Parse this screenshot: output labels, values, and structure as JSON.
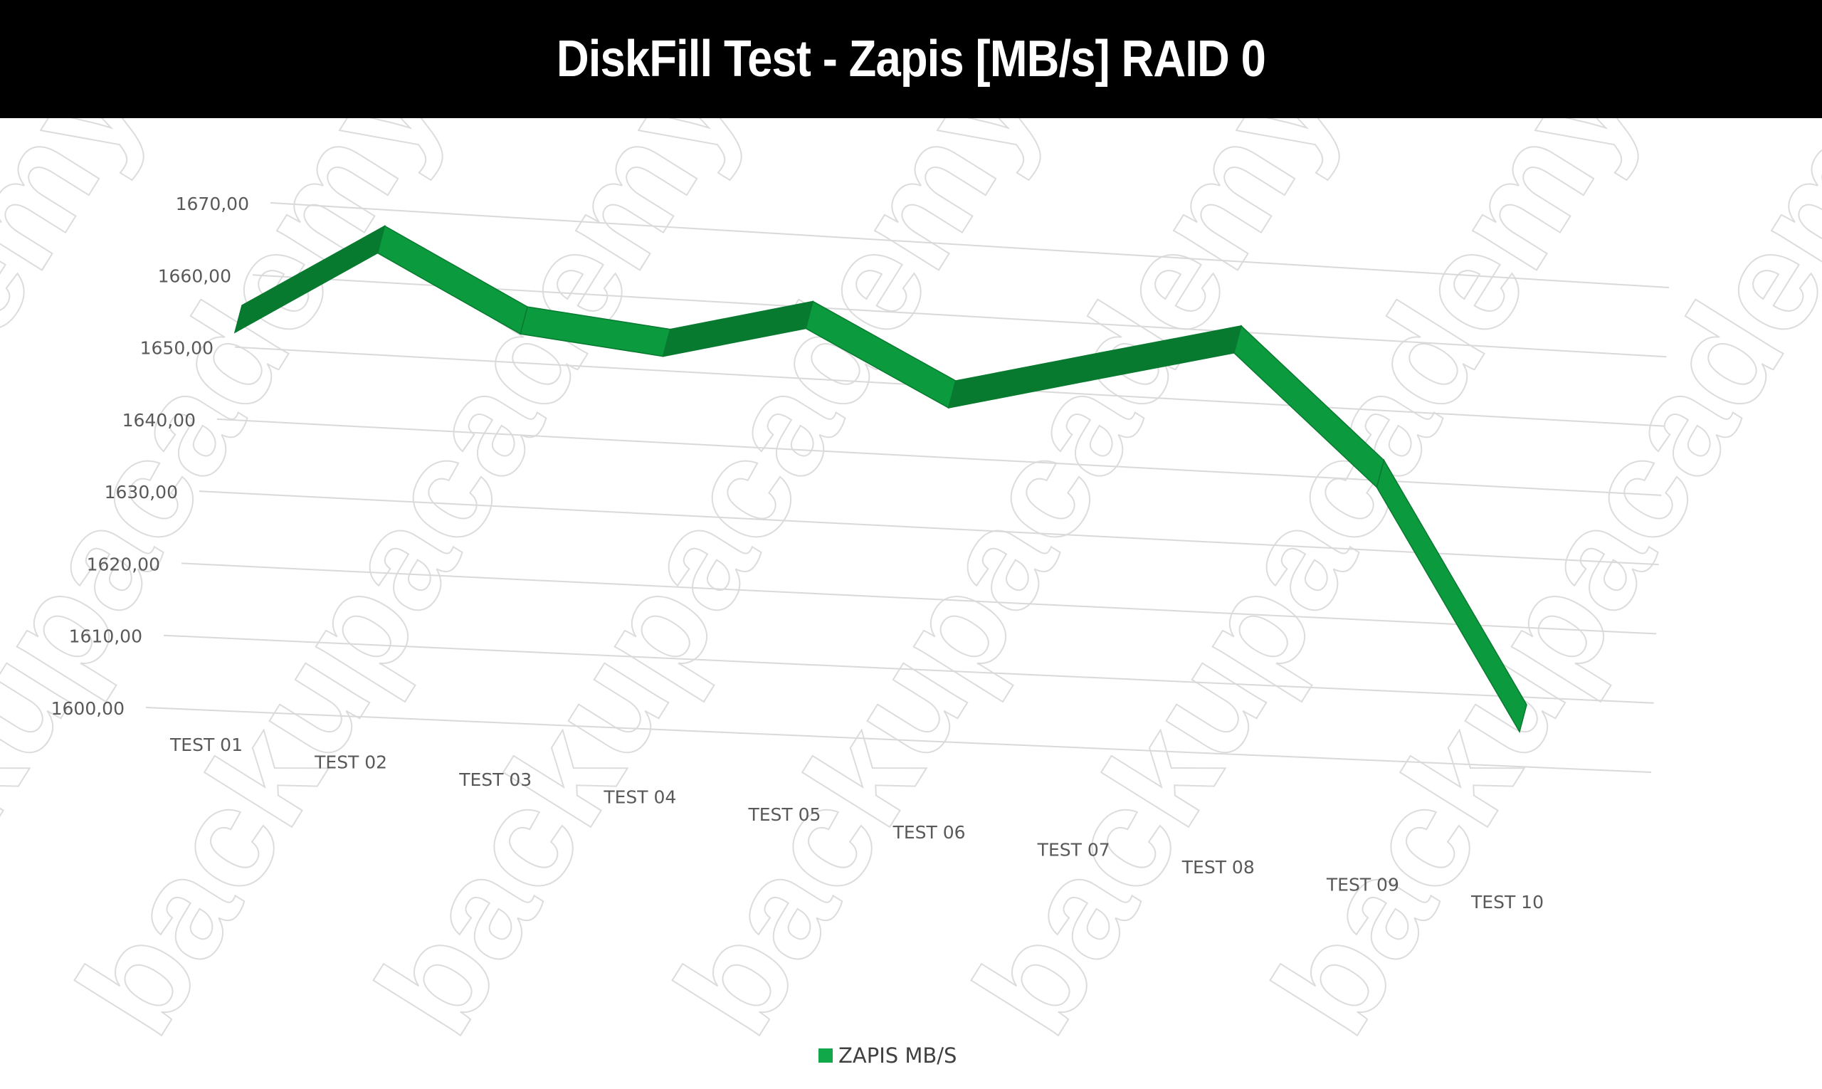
{
  "title": "DiskFill Test - Zapis [MB/s] RAID 0",
  "watermark": "backupacademy.pl",
  "chart_data": {
    "type": "line",
    "style": "3d-ribbon",
    "title": "DiskFill Test - Zapis [MB/s] RAID 0",
    "categories": [
      "TEST 01",
      "TEST 02",
      "TEST 03",
      "TEST 04",
      "TEST 05",
      "TEST 06",
      "TEST 07",
      "TEST 08",
      "TEST 09",
      "TEST 10"
    ],
    "series": [
      {
        "name": "ZAPIS MB/S",
        "values": [
          1652,
          1664,
          1654,
          1652,
          1657,
          1647,
          1652,
          1657,
          1639,
          1605
        ]
      }
    ],
    "y_ticks": [
      "1600,00",
      "1610,00",
      "1620,00",
      "1630,00",
      "1640,00",
      "1650,00",
      "1660,00",
      "1670,00"
    ],
    "ylim": [
      1600,
      1670
    ],
    "grid": true,
    "legend_position": "bottom",
    "colors": {
      "series": "#0c9a3f",
      "series_dark": "#087a30",
      "legend": "#11a84a",
      "grid": "#d9d9d9",
      "axis_text": "#595959"
    }
  }
}
